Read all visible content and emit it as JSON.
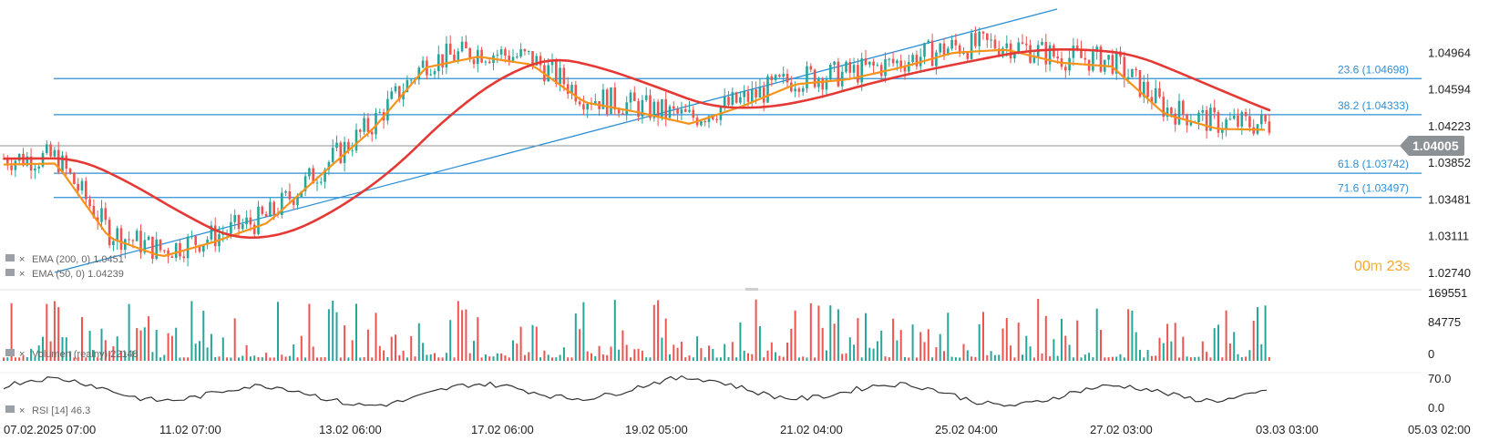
{
  "chart_data": {
    "type": "candlestick",
    "symbol_price": "1.04005",
    "price_axis": {
      "ticks": [
        "1.04964",
        "1.04594",
        "1.04223",
        "1.03852",
        "1.03481",
        "1.03111",
        "1.02740"
      ],
      "range": [
        1.0262,
        1.054
      ]
    },
    "time_axis": {
      "ticks": [
        "07.02.2025  07:00",
        "11.02  07:00",
        "13.02  06:00",
        "17.02  06:00",
        "19.02  05:00",
        "21.02  04:00",
        "25.02  04:00",
        "27.02  03:00",
        "03.03  03:00",
        "05.03  02:00"
      ]
    },
    "fibonacci_levels": [
      {
        "label": "23.6 (1.04698)",
        "price": 1.04698
      },
      {
        "label": "38.2 (1.04333)",
        "price": 1.04333
      },
      {
        "label": "61.8 (1.03742)",
        "price": 1.03742
      },
      {
        "label": "71.6 (1.03497)",
        "price": 1.03497
      }
    ],
    "trendline": {
      "from_price": 1.0274,
      "to_price": 1.054
    },
    "ema_close_key_points": [
      1.0389,
      1.039,
      1.0315,
      1.0296,
      1.0311,
      1.033,
      1.0378,
      1.0425,
      1.0487,
      1.0498,
      1.049,
      1.0452,
      1.0442,
      1.043,
      1.0448,
      1.047,
      1.0475,
      1.0487,
      1.0502,
      1.0505,
      1.0492,
      1.0488,
      1.044,
      1.0425,
      1.0424
    ],
    "indicators": {
      "ema200_label": "EMA (200,  0)  1.0451",
      "ema50_label": "EMA (50,  0)  1.04239",
      "volume_label": "Volumen  (realny)  22148",
      "rsi_label": "RSI  [14]  46.3"
    },
    "volume_axis": {
      "ticks": [
        "169551",
        "84775",
        "0"
      ],
      "max": 169551
    },
    "rsi_axis": {
      "ticks": [
        "70.0",
        "0.0"
      ]
    },
    "timer": {
      "minutes": "00",
      "m": "m",
      "seconds": "23",
      "s": "s"
    },
    "colors": {
      "up": "#26a69a",
      "down": "#ef5350",
      "ema50": "#f7931a",
      "ema200": "#e53935",
      "fib": "#2d8fd5",
      "rsi": "#333333"
    }
  }
}
